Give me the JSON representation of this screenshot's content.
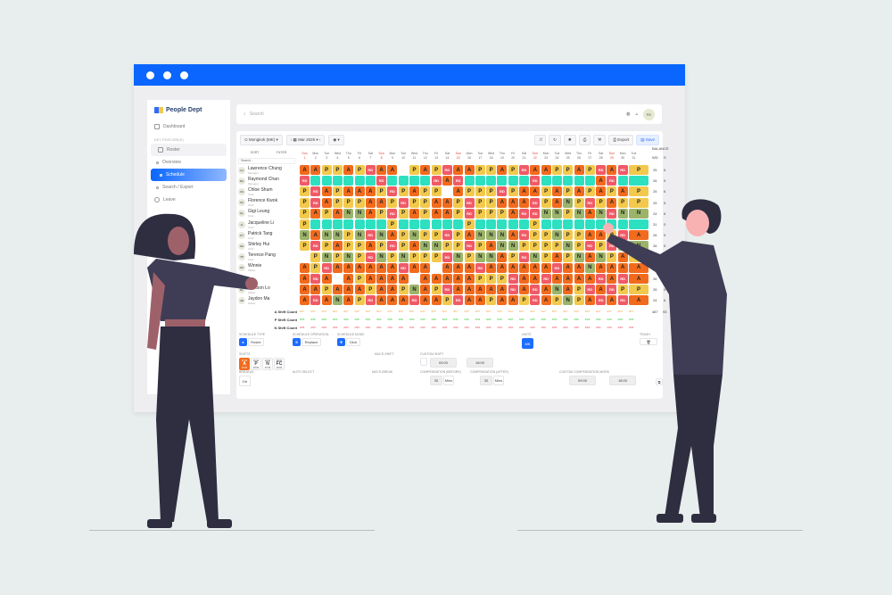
{
  "colors": {
    "accent": "#0a66ff",
    "A": "#f26b1d",
    "P": "#f2c94c",
    "N": "#9bb46a",
    "RD": "#f05a66",
    "T": "#2de0c0"
  },
  "sidebar": {
    "brand": "People Dept",
    "items": [
      {
        "label": "Dashboard"
      },
      {
        "label": "KEY FEATURE(S)"
      },
      {
        "label": "Roster"
      },
      {
        "label": "Overview"
      },
      {
        "label": "Schedule"
      },
      {
        "label": "Search / Export"
      },
      {
        "label": "Leave"
      }
    ]
  },
  "topbar": {
    "search_placeholder": "Search",
    "avatar": "PD"
  },
  "toolbar": {
    "location": "Mongkok (MK)",
    "month": "Mar 2026",
    "export": "Export",
    "save": "Save",
    "sort": "SORT",
    "filter": "FILTER",
    "search_placeholder": "Search..."
  },
  "balance": {
    "title": "BALANCE",
    "cols": [
      "WD",
      "S"
    ],
    "total": [
      "487",
      "93"
    ]
  },
  "days": {
    "weekdays": [
      "Sun",
      "Mon",
      "Tue",
      "Wed",
      "Thu",
      "Fri",
      "Sat",
      "Sun",
      "Mon",
      "Tue",
      "Wed",
      "Thu",
      "Fri",
      "Sat",
      "Sun",
      "Mon",
      "Tue",
      "Wed",
      "Thu",
      "Fri",
      "Sat",
      "Sun",
      "Mon",
      "Tue",
      "Wed",
      "Thu",
      "Fri",
      "Sat",
      "Sun",
      "Mon",
      "Tue"
    ],
    "sundays": [
      1,
      8,
      15,
      22,
      29
    ]
  },
  "staff": [
    {
      "initials": "LC",
      "name": "Lawrence Chung",
      "role": "Manager",
      "bal": [
        "25",
        "6"
      ],
      "shifts": "AAPPAPRAA PAPRAAPPAPRAAPPAPRARP"
    },
    {
      "initials": "RA",
      "name": "Raymond Chan",
      "role": "Manager",
      "bal": [
        "26",
        "5"
      ],
      "shifts": "RTTTTTTRTTTTRARTTTTTTRTTTTTARTT"
    },
    {
      "initials": "CS",
      "name": "Chloe Shum",
      "role": "Chef",
      "bal": [
        "25",
        "6"
      ],
      "shifts": "PRAPAAAPRPAPP APPPRPAAPAPAPAPAP"
    },
    {
      "initials": "FK",
      "name": "Florence Kwok",
      "role": "Chef",
      "bal": [
        "25",
        "5"
      ],
      "shifts": "PRAPPPAAPRPPAAPRPPAAARPANPRPAPP"
    },
    {
      "initials": "GL",
      "name": "Gigi Leung",
      "role": "Chef",
      "bal": [
        "24",
        "6"
      ],
      "shifts": "PAPANNAPRPAPAAPRPPPARRNNPNANRNN"
    },
    {
      "initials": "JL",
      "name": "Jacqueline Li",
      "role": "Chef",
      "bal": [
        "31",
        "0"
      ],
      "shifts": "PTTTTTTTPTTTTTTPTTTTTPTTTTTTTTT"
    },
    {
      "initials": "PT",
      "name": "Patrick Tang",
      "role": "Chef",
      "bal": [
        "26",
        "5"
      ],
      "shifts": "NANNPNRNAPNPPRPANNNARPPNPPAAPRA"
    },
    {
      "initials": "SH",
      "name": "Shirley Hui",
      "role": "Chef",
      "bal": [
        "26",
        "5"
      ],
      "shifts": "PRPAPPAPRPANNPPRPANNPPPPNPRPRNN"
    },
    {
      "initials": "TP",
      "name": "Terence Pang",
      "role": "Chef",
      "bal": [
        "25",
        "6"
      ],
      "shifts": " PNPNPRNPNPPPRNPNNAPRNPAPNANPAP"
    },
    {
      "initials": "WI",
      "name": "Winnie",
      "role": "Waiter",
      "bal": [
        "24",
        "6"
      ],
      "shifts": "APRAAAAAARAA AAARAAAAAARAANAAAA"
    },
    {
      "initials": "",
      "name": "",
      "role": "Waiter",
      "bal": [
        "26",
        "5"
      ],
      "shifts": "ARA APAAAA AAAAAPPPRAARAAAARARA"
    },
    {
      "initials": "DL",
      "name": "Dickson Lo",
      "role": "Waiter",
      "bal": [
        "25",
        "5"
      ],
      "shifts": "AAPAAAPAAPNAPRAAAAARARANAPRARPP"
    },
    {
      "initials": "JM",
      "name": "Jaydon Ma",
      "role": "Waiter",
      "bal": [
        "24",
        "6"
      ],
      "shifts": "ARANAPRAAARAAPRAAPAAPRAPNPARARA"
    }
  ],
  "counts": [
    {
      "label": "A Shift Count",
      "value": "6/1/7"
    },
    {
      "label": "P Shift Count",
      "value": "5/4/6"
    },
    {
      "label": "N Shift Count",
      "value": "2/3/4"
    }
  ],
  "bottom": {
    "schedule_type": "SCHEDULE TYPE",
    "roster": "Roster",
    "schedule_operation": "SCHEDULE OPERATION",
    "replace": "Replace",
    "schedule_mode": "SCHEDULE MODE",
    "click": "Click",
    "units": "UNITS",
    "trash": "TRASH",
    "shifts": "SHIFTS",
    "shift_buttons": [
      {
        "code": "A",
        "start": "07:00",
        "end": "15:00"
      },
      {
        "code": "P",
        "start": "15:00",
        "end": "23:00"
      },
      {
        "code": "N",
        "start": "23:00",
        "end": "07:00"
      },
      {
        "code": "FC",
        "start": "09:00",
        "end": "18:00"
      }
    ],
    "multi_shift": "MULTI-SHIFT",
    "custom_shift": "CUSTOM SHIFT",
    "custom_start": "09:00",
    "custom_end": "18:00",
    "breaks": "BREAK(S)",
    "break_value": "1hr",
    "auto_select": "AUTO SELECT",
    "multi_break": "MULTI-BREAK",
    "comp_before": "COMPENSATION (BEFORE)",
    "comp_after": "COMPENSATION (AFTER)",
    "comp_value": "30",
    "mins": "Mins",
    "custom_comp": "CUSTOM COMPENSATION WORK",
    "comp_start": "09:00",
    "comp_end": "18:00"
  }
}
